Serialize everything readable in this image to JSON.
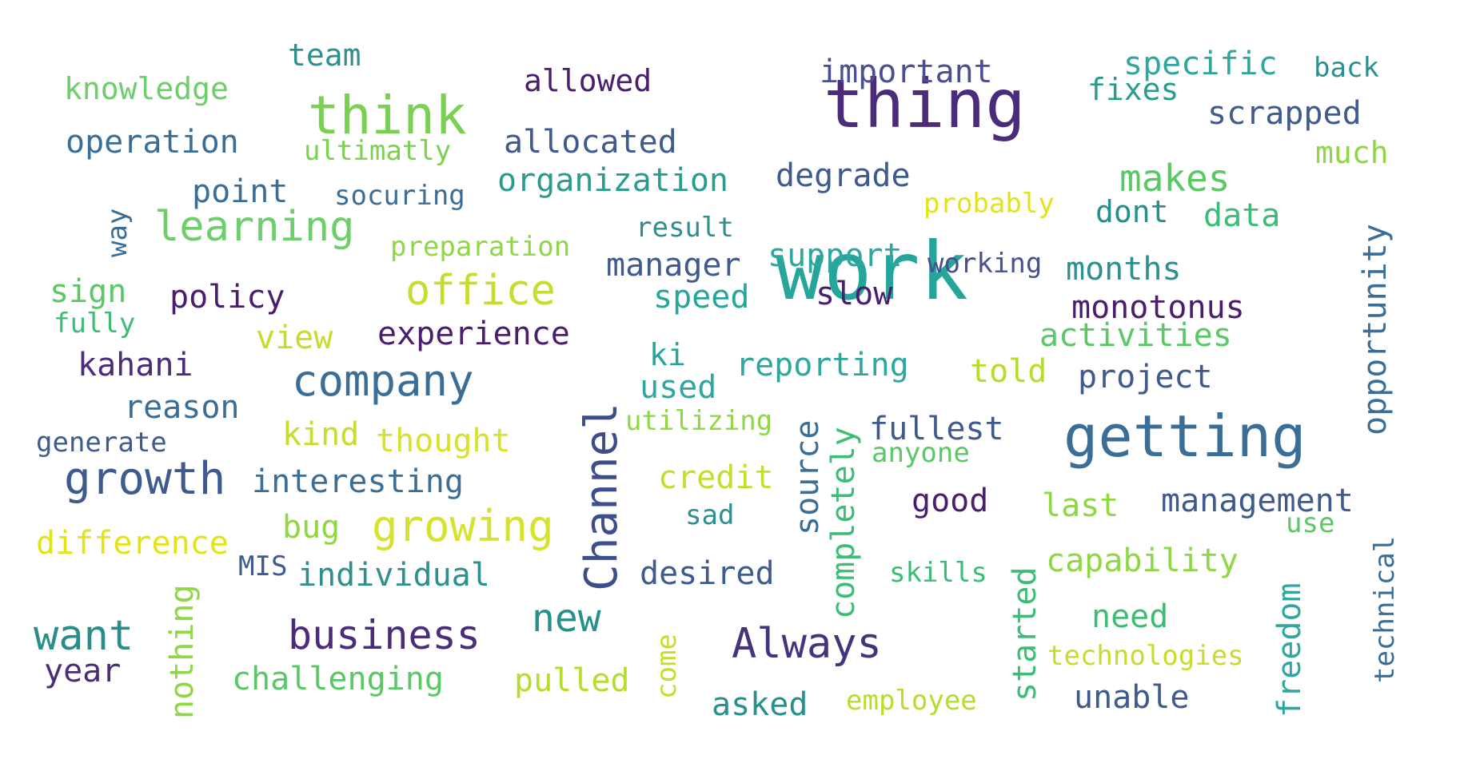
{
  "words": [
    {
      "text": "work",
      "color": "#26a69a"
    },
    {
      "text": "thing",
      "color": "#4a2c7a"
    },
    {
      "text": "getting",
      "color": "#3b6e96"
    },
    {
      "text": "think",
      "color": "#7ad151"
    },
    {
      "text": "learning",
      "color": "#6ccf6a"
    },
    {
      "text": "office",
      "color": "#c7dc2d"
    },
    {
      "text": "company",
      "color": "#3b6e96"
    },
    {
      "text": "growth",
      "color": "#3f5a8e"
    },
    {
      "text": "growing",
      "color": "#d6e22b"
    },
    {
      "text": "business",
      "color": "#4a2c7a"
    },
    {
      "text": "Channel",
      "color": "#3f4e8a"
    },
    {
      "text": "Always",
      "color": "#46337e"
    },
    {
      "text": "want",
      "color": "#2a8c8b"
    },
    {
      "text": "new",
      "color": "#26908c"
    },
    {
      "text": "makes",
      "color": "#5ac864"
    },
    {
      "text": "opportunity",
      "color": "#3b6e96"
    },
    {
      "text": "allowed",
      "color": "#4b1d6e"
    },
    {
      "text": "important",
      "color": "#4a4f91"
    },
    {
      "text": "specific",
      "color": "#2ea89e"
    },
    {
      "text": "back",
      "color": "#2e8f8f"
    },
    {
      "text": "team",
      "color": "#2e8f8f"
    },
    {
      "text": "knowledge",
      "color": "#6ccf6a"
    },
    {
      "text": "operation",
      "color": "#3b6e96"
    },
    {
      "text": "ultimatly",
      "color": "#7ad151"
    },
    {
      "text": "allocated",
      "color": "#3f5a8e"
    },
    {
      "text": "fixes",
      "color": "#2a9c8e"
    },
    {
      "text": "scrapped",
      "color": "#3f5a8e"
    },
    {
      "text": "much",
      "color": "#8fd744"
    },
    {
      "text": "point",
      "color": "#3b6e96"
    },
    {
      "text": "socuring",
      "color": "#3b6e96"
    },
    {
      "text": "organization",
      "color": "#2a9c8e"
    },
    {
      "text": "degrade",
      "color": "#3f5a8e"
    },
    {
      "text": "probably",
      "color": "#e3e418"
    },
    {
      "text": "dont",
      "color": "#26908c"
    },
    {
      "text": "data",
      "color": "#3cbc75"
    },
    {
      "text": "way",
      "color": "#3b6e96"
    },
    {
      "text": "preparation",
      "color": "#8fd744"
    },
    {
      "text": "result",
      "color": "#2e8f8f"
    },
    {
      "text": "manager",
      "color": "#3f5a8e"
    },
    {
      "text": "support",
      "color": "#2ea89e"
    },
    {
      "text": "working",
      "color": "#4a4f91"
    },
    {
      "text": "months",
      "color": "#2e8f8f"
    },
    {
      "text": "sign",
      "color": "#5ac864"
    },
    {
      "text": "policy",
      "color": "#4b1d6e"
    },
    {
      "text": "slow",
      "color": "#4b1d6e"
    },
    {
      "text": "fully",
      "color": "#3cbc75"
    },
    {
      "text": "speed",
      "color": "#26a69a"
    },
    {
      "text": "monotonus",
      "color": "#4b1d6e"
    },
    {
      "text": "view",
      "color": "#c7dc2d"
    },
    {
      "text": "experience",
      "color": "#4b1d6e"
    },
    {
      "text": "activities",
      "color": "#5ac864"
    },
    {
      "text": "kahani",
      "color": "#4a2c7a"
    },
    {
      "text": "ki",
      "color": "#26a69a"
    },
    {
      "text": "reporting",
      "color": "#2ea89e"
    },
    {
      "text": "told",
      "color": "#b5de2b"
    },
    {
      "text": "project",
      "color": "#3f5a8e"
    },
    {
      "text": "reason",
      "color": "#3b6e96"
    },
    {
      "text": "used",
      "color": "#2ea89e"
    },
    {
      "text": "utilizing",
      "color": "#8fd744"
    },
    {
      "text": "fullest",
      "color": "#3f5a8e"
    },
    {
      "text": "generate",
      "color": "#3f5a8e"
    },
    {
      "text": "kind",
      "color": "#c7dc2d"
    },
    {
      "text": "thought",
      "color": "#d6e22b"
    },
    {
      "text": "source",
      "color": "#3b6e96"
    },
    {
      "text": "completely",
      "color": "#3cbc75"
    },
    {
      "text": "anyone",
      "color": "#5ac864"
    },
    {
      "text": "interesting",
      "color": "#3b6e96"
    },
    {
      "text": "credit",
      "color": "#c7dc2d"
    },
    {
      "text": "good",
      "color": "#4b1d6e"
    },
    {
      "text": "last",
      "color": "#8fd744"
    },
    {
      "text": "management",
      "color": "#3f5a8e"
    },
    {
      "text": "difference",
      "color": "#e3e418"
    },
    {
      "text": "bug",
      "color": "#8fd744"
    },
    {
      "text": "sad",
      "color": "#2e8f8f"
    },
    {
      "text": "use",
      "color": "#5ac864"
    },
    {
      "text": "technical",
      "color": "#3b6e96"
    },
    {
      "text": "MIS",
      "color": "#3f5a8e"
    },
    {
      "text": "individual",
      "color": "#2e8f8f"
    },
    {
      "text": "desired",
      "color": "#3f5a8e"
    },
    {
      "text": "skills",
      "color": "#3cbc75"
    },
    {
      "text": "capability",
      "color": "#8fd744"
    },
    {
      "text": "nothing",
      "color": "#8fd744"
    },
    {
      "text": "started",
      "color": "#3cbc75"
    },
    {
      "text": "freedom",
      "color": "#2ea89e"
    },
    {
      "text": "need",
      "color": "#3cbc75"
    },
    {
      "text": "come",
      "color": "#c7dc2d"
    },
    {
      "text": "technologies",
      "color": "#c7dc2d"
    },
    {
      "text": "year",
      "color": "#4a2c7a"
    },
    {
      "text": "challenging",
      "color": "#5ac864"
    },
    {
      "text": "pulled",
      "color": "#b5de2b"
    },
    {
      "text": "asked",
      "color": "#26908c"
    },
    {
      "text": "employee",
      "color": "#b5de2b"
    },
    {
      "text": "unable",
      "color": "#3f5a8e"
    }
  ]
}
